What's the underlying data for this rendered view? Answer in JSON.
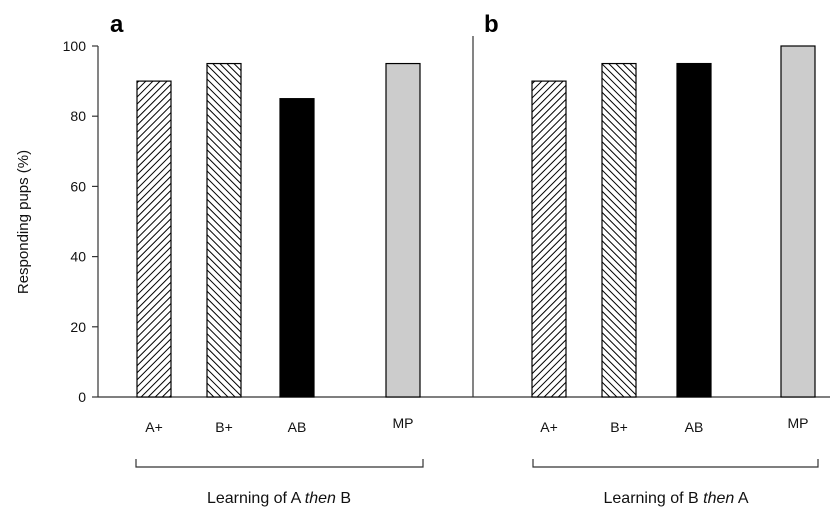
{
  "chart_data": [
    {
      "type": "bar",
      "panel": "a",
      "categories": [
        "A+",
        "B+",
        "AB",
        "MP"
      ],
      "values": [
        90,
        95,
        85,
        95
      ],
      "fills": [
        "hatch-fwd",
        "hatch-back",
        "solid-black",
        "solid-gray"
      ],
      "ylabel": "Responding pups (%)",
      "yticks": [
        "0",
        "20",
        "40",
        "60",
        "80",
        "100"
      ],
      "ylim": [
        0,
        100
      ],
      "group_label": {
        "pre": "Learning of A ",
        "em": "then",
        "post": " B"
      }
    },
    {
      "type": "bar",
      "panel": "b",
      "categories": [
        "A+",
        "B+",
        "AB",
        "MP"
      ],
      "values": [
        90,
        95,
        95,
        100
      ],
      "fills": [
        "hatch-fwd",
        "hatch-back",
        "solid-black",
        "solid-gray"
      ],
      "ylim": [
        0,
        100
      ],
      "group_label": {
        "pre": "Learning of B ",
        "em": "then",
        "post": " A"
      }
    }
  ],
  "colors": {
    "black": "#000000",
    "gray": "#cccccc",
    "axis": "#333333"
  }
}
